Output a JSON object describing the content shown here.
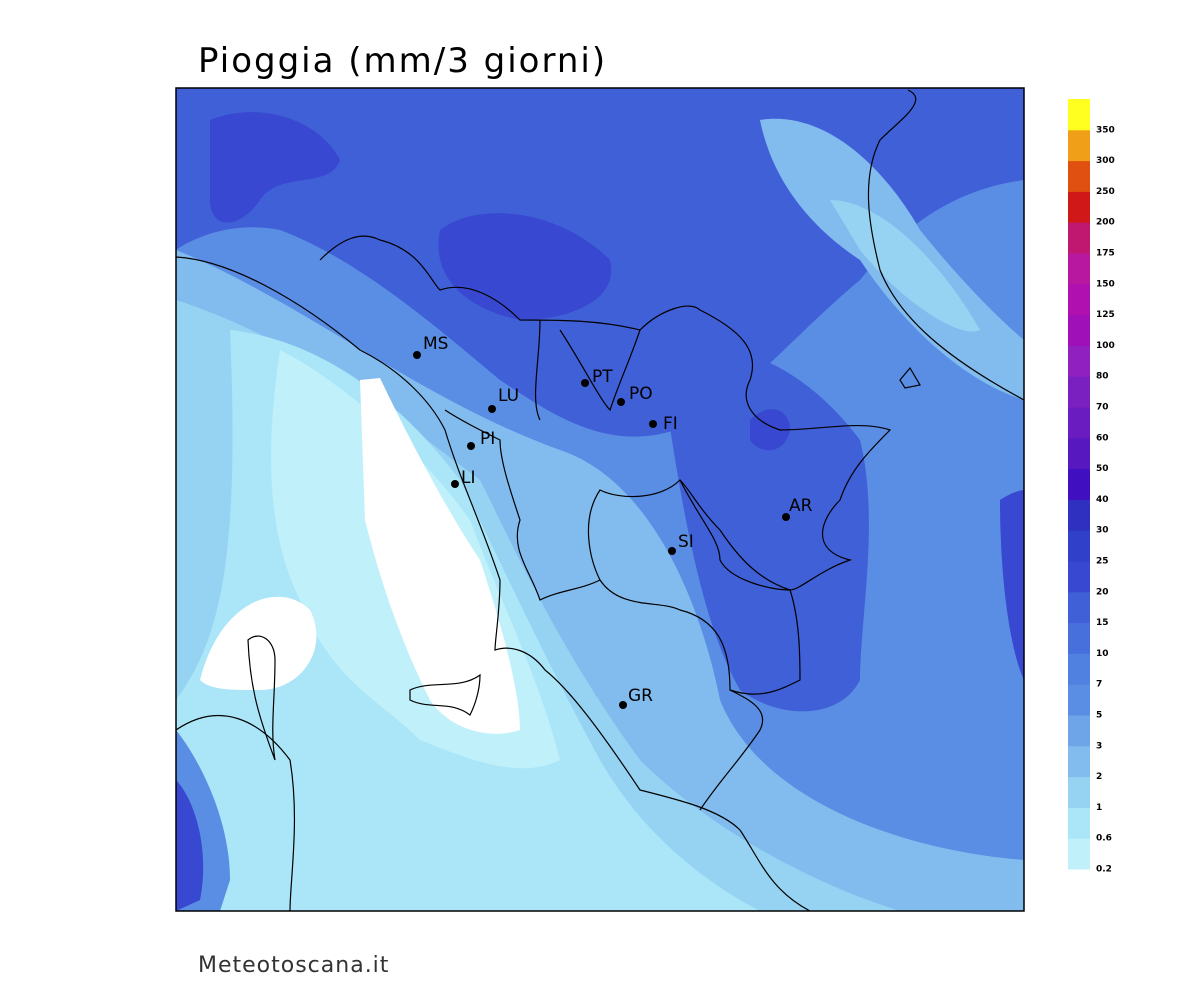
{
  "title": "Pioggia (mm/3 giorni)",
  "footer": "Meteotoscana.it",
  "cities": [
    "MS",
    "LU",
    "PT",
    "PO",
    "FI",
    "PI",
    "LI",
    "AR",
    "SI",
    "GR"
  ],
  "legend": {
    "levels": [
      0.2,
      0.6,
      1,
      2,
      3,
      5,
      7,
      10,
      15,
      20,
      25,
      30,
      40,
      50,
      60,
      70,
      80,
      100,
      125,
      150,
      175,
      200,
      250,
      300,
      350
    ],
    "colors": [
      "#c0f0fa",
      "#aae6f8",
      "#96d2f2",
      "#82bcee",
      "#6ea4e8",
      "#5a8ee4",
      "#5080e0",
      "#4870dc",
      "#4060d8",
      "#3848d0",
      "#3040c8",
      "#3030c0",
      "#4010c0",
      "#5818c0",
      "#6a1cc0",
      "#7a20c0",
      "#9020c0",
      "#a010b8",
      "#b010b0",
      "#b818a0",
      "#c01870",
      "#d01818",
      "#e05010",
      "#f0a018",
      "#ffff20"
    ]
  }
}
